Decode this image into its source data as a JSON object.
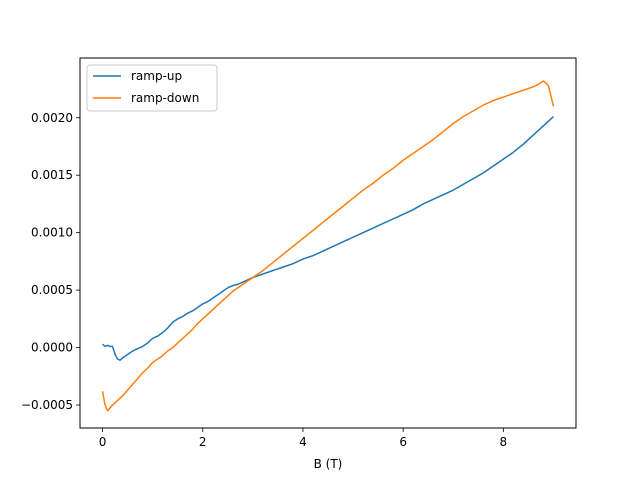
{
  "chart_data": {
    "type": "line",
    "title": "",
    "xlabel": "B (T)",
    "ylabel": "",
    "xlim": [
      -0.45,
      9.45
    ],
    "ylim": [
      -0.0007,
      0.00252
    ],
    "xticks": [
      0,
      2,
      4,
      6,
      8
    ],
    "xtick_labels": [
      "0",
      "2",
      "4",
      "6",
      "8"
    ],
    "yticks": [
      -0.0005,
      0.0,
      0.0005,
      0.001,
      0.0015,
      0.002
    ],
    "ytick_labels": [
      "−0.0005",
      "0.0000",
      "0.0005",
      "0.0010",
      "0.0015",
      "0.0020"
    ],
    "grid": false,
    "legend_position": "top-left",
    "series": [
      {
        "name": "ramp-up",
        "color": "#1f77b4",
        "x": [
          0,
          0.05,
          0.1,
          0.15,
          0.2,
          0.25,
          0.3,
          0.35,
          0.4,
          0.5,
          0.6,
          0.7,
          0.8,
          0.9,
          1.0,
          1.1,
          1.2,
          1.3,
          1.4,
          1.5,
          1.6,
          1.7,
          1.8,
          1.9,
          2.0,
          2.1,
          2.2,
          2.3,
          2.4,
          2.5,
          2.6,
          2.7,
          2.8,
          2.9,
          3.0,
          3.2,
          3.4,
          3.6,
          3.8,
          4.0,
          4.2,
          4.4,
          4.6,
          4.8,
          5.0,
          5.2,
          5.4,
          5.6,
          5.8,
          6.0,
          6.2,
          6.4,
          6.6,
          6.8,
          7.0,
          7.2,
          7.4,
          7.6,
          7.8,
          8.0,
          8.2,
          8.4,
          8.6,
          8.8,
          9.0
        ],
        "y": [
          3e-05,
          1e-05,
          2e-05,
          1e-05,
          1e-05,
          -6e-05,
          -0.0001,
          -0.00011,
          -9e-05,
          -6e-05,
          -3e-05,
          -1e-05,
          1e-05,
          4e-05,
          8e-05,
          0.0001,
          0.00013,
          0.00017,
          0.00022,
          0.00025,
          0.00027,
          0.0003,
          0.00032,
          0.00035,
          0.00038,
          0.0004,
          0.00043,
          0.00046,
          0.00049,
          0.00052,
          0.00054,
          0.00055,
          0.00057,
          0.00059,
          0.00061,
          0.00064,
          0.00067,
          0.0007,
          0.00073,
          0.00077,
          0.0008,
          0.00084,
          0.00088,
          0.00092,
          0.00096,
          0.001,
          0.00104,
          0.00108,
          0.00112,
          0.00116,
          0.0012,
          0.00125,
          0.00129,
          0.00133,
          0.00137,
          0.00142,
          0.00147,
          0.00152,
          0.00158,
          0.00164,
          0.0017,
          0.00177,
          0.00185,
          0.00193,
          0.00201
        ]
      },
      {
        "name": "ramp-down",
        "color": "#ff7f0e",
        "x": [
          0,
          0.05,
          0.1,
          0.2,
          0.3,
          0.4,
          0.5,
          0.6,
          0.7,
          0.8,
          0.9,
          1.0,
          1.1,
          1.2,
          1.3,
          1.4,
          1.5,
          1.6,
          1.7,
          1.8,
          1.9,
          2.0,
          2.2,
          2.4,
          2.6,
          2.8,
          3.0,
          3.2,
          3.4,
          3.6,
          3.8,
          4.0,
          4.2,
          4.4,
          4.6,
          4.8,
          5.0,
          5.2,
          5.4,
          5.6,
          5.8,
          6.0,
          6.2,
          6.4,
          6.6,
          6.8,
          7.0,
          7.2,
          7.4,
          7.6,
          7.8,
          8.0,
          8.2,
          8.4,
          8.6,
          8.7,
          8.8,
          8.9,
          9.0
        ],
        "y": [
          -0.00038,
          -0.0005,
          -0.00055,
          -0.0005,
          -0.00046,
          -0.00042,
          -0.00037,
          -0.00032,
          -0.00027,
          -0.00022,
          -0.00018,
          -0.00013,
          -0.0001,
          -7e-05,
          -3e-05,
          0.0,
          4e-05,
          8e-05,
          0.00012,
          0.00016,
          0.00021,
          0.00025,
          0.00033,
          0.00041,
          0.00049,
          0.00055,
          0.00061,
          0.00067,
          0.00074,
          0.00081,
          0.00088,
          0.00095,
          0.00102,
          0.00109,
          0.00116,
          0.00123,
          0.0013,
          0.00137,
          0.00143,
          0.0015,
          0.00156,
          0.00163,
          0.00169,
          0.00175,
          0.00181,
          0.00188,
          0.00195,
          0.00201,
          0.00206,
          0.00211,
          0.00215,
          0.00218,
          0.00221,
          0.00224,
          0.00227,
          0.00229,
          0.00232,
          0.00228,
          0.0021
        ]
      }
    ]
  }
}
